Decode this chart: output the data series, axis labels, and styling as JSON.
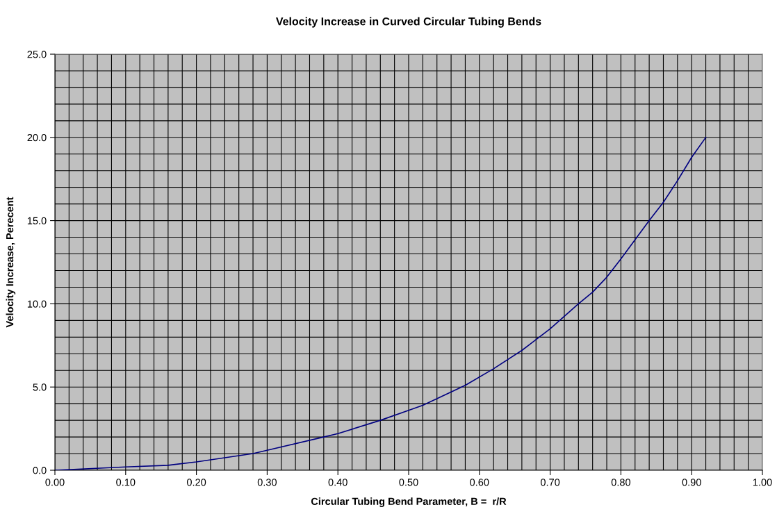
{
  "chart_data": {
    "type": "line",
    "title": "Velocity Increase in Curved Circular Tubing Bends",
    "xlabel": "Circular Tubing Bend Parameter, B =  r/R",
    "ylabel": "Velocity Increase, Perecent",
    "x": [
      0,
      0.1,
      0.16,
      0.2,
      0.28,
      0.3,
      0.38,
      0.4,
      0.46,
      0.5,
      0.52,
      0.58,
      0.62,
      0.66,
      0.7,
      0.74,
      0.76,
      0.78,
      0.8,
      0.84,
      0.86,
      0.88,
      0.9,
      0.92
    ],
    "series": [
      {
        "color": "#000080",
        "values": [
          0,
          0.2,
          0.3,
          0.5,
          1.0,
          1.2,
          2.0,
          2.2,
          3.0,
          3.6,
          3.9,
          5.1,
          6.1,
          7.2,
          8.5,
          10.0,
          10.7,
          11.6,
          12.7,
          15.0,
          16.1,
          17.4,
          18.8,
          20.0
        ]
      }
    ],
    "xlim": [
      0,
      1.0
    ],
    "ylim": [
      0,
      25
    ],
    "xticks": [
      {
        "value": 0,
        "label": "0.00"
      },
      {
        "value": 0.1,
        "label": "0.10"
      },
      {
        "value": 0.2,
        "label": "0.20"
      },
      {
        "value": 0.3,
        "label": "0.30"
      },
      {
        "value": 0.4,
        "label": "0.40"
      },
      {
        "value": 0.5,
        "label": "0.50"
      },
      {
        "value": 0.6,
        "label": "0.60"
      },
      {
        "value": 0.7,
        "label": "0.70"
      },
      {
        "value": 0.8,
        "label": "0.80"
      },
      {
        "value": 0.9,
        "label": "0.90"
      },
      {
        "value": 1.0,
        "label": "1.00"
      }
    ],
    "yticks": [
      {
        "value": 0,
        "label": "0.0"
      },
      {
        "value": 5,
        "label": "5.0"
      },
      {
        "value": 10,
        "label": "10.0"
      },
      {
        "value": 15,
        "label": "15.0"
      },
      {
        "value": 20,
        "label": "20.0"
      },
      {
        "value": 25,
        "label": "25.0"
      }
    ],
    "grid": true,
    "marker": "none",
    "line_style": "solid",
    "legend": false
  }
}
